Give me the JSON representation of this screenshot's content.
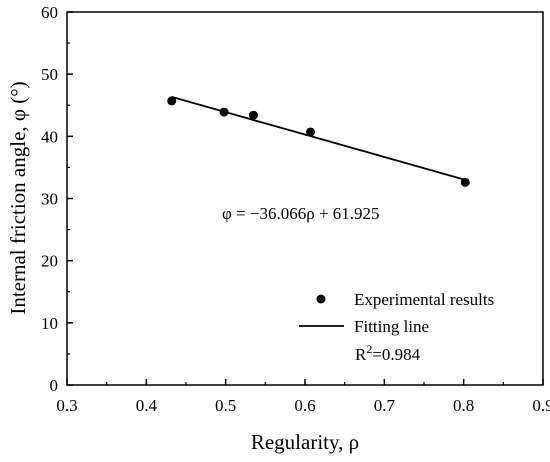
{
  "chart_data": {
    "type": "scatter",
    "xlabel": "Regularity, ρ",
    "ylabel": "Internal friction angle, φ (°)",
    "xlim": [
      0.3,
      0.9
    ],
    "ylim": [
      0,
      60
    ],
    "x_ticks": [
      "0.3",
      "0.4",
      "0.5",
      "0.6",
      "0.7",
      "0.8",
      "0.9"
    ],
    "y_ticks": [
      "0",
      "10",
      "20",
      "30",
      "40",
      "50",
      "60"
    ],
    "grid": false,
    "series": [
      {
        "name": "Experimental results",
        "type": "scatter",
        "color": "#000000",
        "points": [
          {
            "x": 0.432,
            "y": 45.7
          },
          {
            "x": 0.498,
            "y": 43.9
          },
          {
            "x": 0.535,
            "y": 43.4
          },
          {
            "x": 0.607,
            "y": 40.7
          },
          {
            "x": 0.802,
            "y": 32.6
          }
        ]
      },
      {
        "name": "Fitting line",
        "type": "line",
        "color": "#000000",
        "slope": -36.066,
        "intercept": 61.925,
        "x_range": [
          0.432,
          0.802
        ]
      }
    ],
    "annotations": [
      {
        "text": "φ = −36.066ρ + 61.925"
      },
      {
        "base": "R",
        "sup": "2",
        "rest": "=0.984"
      }
    ],
    "legend_position": "bottom-right"
  }
}
